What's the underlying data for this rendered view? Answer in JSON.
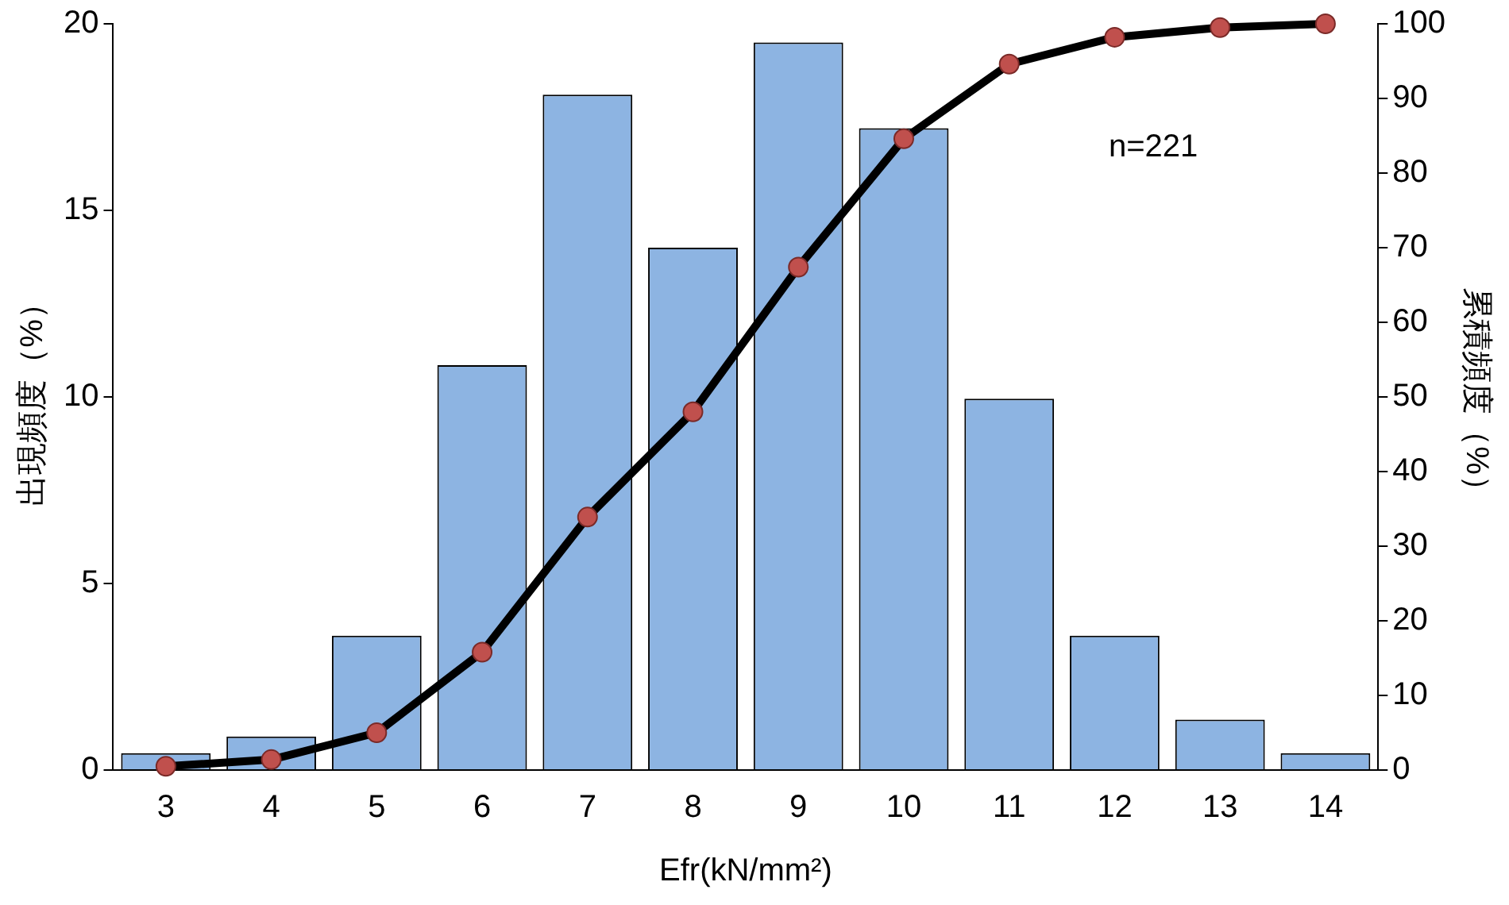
{
  "chart_data": {
    "type": "bar",
    "xlabel": "Efr(kN/mm²)",
    "ylabel": "出現頻度（%）",
    "y2label": "累積頻度（%）",
    "categories": [
      "3",
      "4",
      "5",
      "6",
      "7",
      "8",
      "9",
      "10",
      "11",
      "12",
      "13",
      "14"
    ],
    "series": [
      {
        "color": "#8db4e2",
        "values": [
          0.45,
          0.9,
          3.6,
          10.85,
          18.1,
          14.0,
          19.5,
          17.2,
          9.95,
          3.6,
          1.35,
          0.45
        ]
      },
      {
        "type": "line",
        "axis": "y2",
        "color": "#000000",
        "marker": "circle",
        "values": [
          0.5,
          1.4,
          5.0,
          15.8,
          33.9,
          48.0,
          67.4,
          84.6,
          94.6,
          98.2,
          99.5,
          100
        ]
      }
    ],
    "ylim": [
      0,
      20
    ],
    "yticks": [
      0,
      5,
      10,
      15,
      20
    ],
    "y2lim": [
      0,
      100
    ],
    "y2ticks": [
      0,
      10,
      20,
      30,
      40,
      50,
      60,
      70,
      80,
      90,
      100
    ],
    "grid": false,
    "legend": false,
    "annotations": [
      "n=221"
    ]
  }
}
